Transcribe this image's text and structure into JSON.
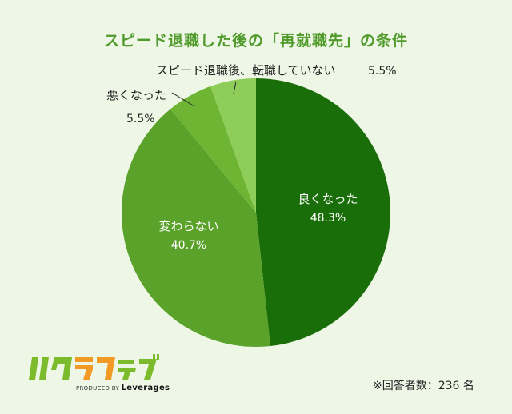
{
  "chart_data": {
    "type": "pie",
    "title": "スピード退職した後の「再就職先」の条件",
    "categories": [
      "良くなった",
      "変わらない",
      "悪くなった",
      "スピード退職後、転職していない"
    ],
    "values": [
      48.3,
      40.7,
      5.5,
      5.5
    ],
    "value_labels": [
      "48.3%",
      "40.7%",
      "5.5%",
      "5.5%"
    ],
    "colors": [
      "#1a6e0a",
      "#5aa22a",
      "#6fb534",
      "#8fcd5a"
    ],
    "start_angle": "12 o'clock, clockwise",
    "legend": "none (direct labels)"
  },
  "labels": {
    "good": "良くなった",
    "good_pct": "48.3%",
    "same": "変わらない",
    "same_pct": "40.7%",
    "worse": "悪くなった",
    "worse_pct": "5.5%",
    "no_job": "スピード退職後、転職していない",
    "no_job_pct": "5.5%"
  },
  "footer": {
    "brand": "ハタラクティブ",
    "produced_by": "PRODUCED BY",
    "company": "Leverages",
    "note": "※回答者数：236 名"
  }
}
